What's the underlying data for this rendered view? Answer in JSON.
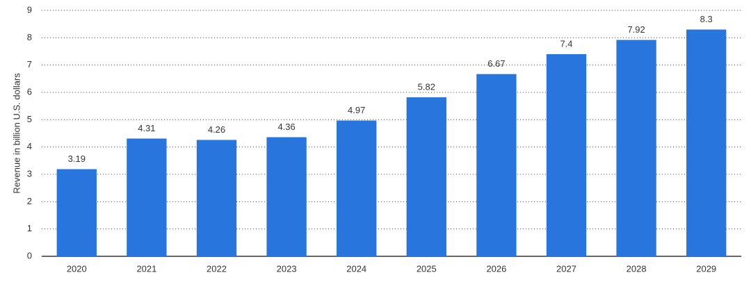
{
  "chart_data": {
    "type": "bar",
    "y_axis_label": "Revenue in billion U.S. dollars",
    "categories": [
      "2020",
      "2021",
      "2022",
      "2023",
      "2024",
      "2025",
      "2026",
      "2027",
      "2028",
      "2029"
    ],
    "values": [
      3.19,
      4.31,
      4.26,
      4.36,
      4.97,
      5.82,
      6.67,
      7.4,
      7.92,
      8.3
    ],
    "color": "#2876dd",
    "ylim": [
      0,
      9
    ],
    "yticks": [
      0,
      1,
      2,
      3,
      4,
      5,
      6,
      7,
      8,
      9
    ],
    "grid": true
  }
}
